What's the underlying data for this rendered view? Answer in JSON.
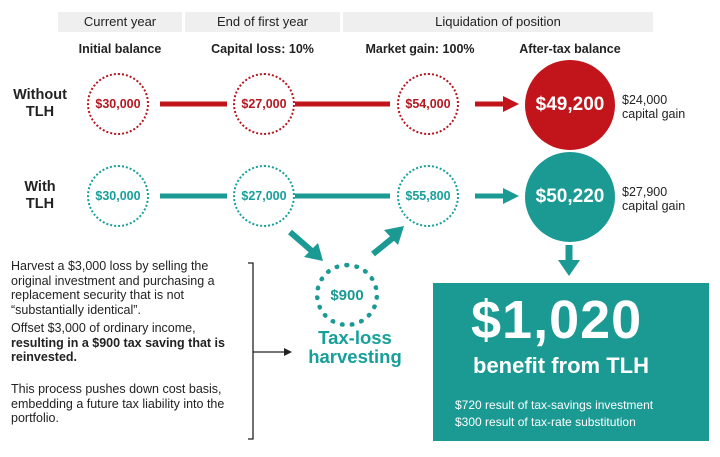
{
  "headers": {
    "current_year": "Current year",
    "end_first_year": "End of first year",
    "liquidation": "Liquidation of position"
  },
  "subheaders": {
    "initial_balance": "Initial balance",
    "capital_loss": "Capital loss: 10%",
    "market_gain": "Market gain: 100%",
    "after_tax": "After-tax balance"
  },
  "without_tlh": {
    "label_line1": "Without",
    "label_line2": "TLH",
    "values": [
      "$30,000",
      "$27,000",
      "$54,000"
    ],
    "final": "$49,200",
    "side_line1": "$24,000",
    "side_line2": "capital gain"
  },
  "with_tlh": {
    "label_line1": "With",
    "label_line2": "TLH",
    "values": [
      "$30,000",
      "$27,000",
      "$55,800"
    ],
    "final": "$50,220",
    "side_line1": "$27,900",
    "side_line2": "capital gain"
  },
  "harvest": {
    "value": "$900",
    "label_line1": "Tax-loss",
    "label_line2": "harvesting"
  },
  "notes": {
    "p1": "Harvest a $3,000 loss by selling the original investment and purchasing a replacement security that is not “substantially identical”.",
    "p2_plain": "Offset $3,000 of ordinary income, ",
    "p2_bold": "resulting in a $900 tax saving that is reinvested.",
    "p3": "This process pushes down cost basis, embedding a future tax liability into the portfolio."
  },
  "benefit_box": {
    "amount": "$1,020",
    "label": "benefit from TLH",
    "line1": "$720 result of tax-savings investment",
    "line2": "$300 result of tax-rate substitution"
  },
  "colors": {
    "red": "#c2141b",
    "teal": "#1b9a94"
  }
}
